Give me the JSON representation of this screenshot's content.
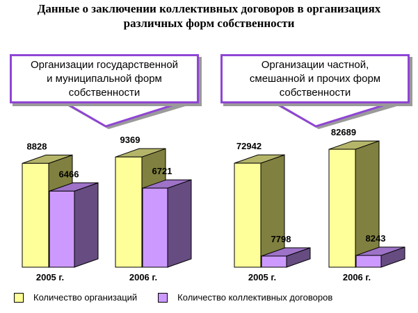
{
  "title_lines": [
    "Данные о заключении коллективных договоров в организациях",
    "различных форм собственности"
  ],
  "callouts": [
    {
      "lines": [
        "Организации государственной",
        "и муниципальной форм",
        "собственности"
      ]
    },
    {
      "lines": [
        "Организации частной,",
        "смешанной и прочих форм",
        "собственности"
      ]
    }
  ],
  "colors": {
    "organizations_front": "#ffff99",
    "organizations_side": "#808040",
    "organizations_top": "#b5b56a",
    "agreements_front": "#cc99ff",
    "agreements_side": "#664c80",
    "agreements_top": "#9d72c7",
    "callout_border": "#8f45d4"
  },
  "chart_data": {
    "type": "bar",
    "style": "3d-grouped",
    "groups": [
      {
        "panel": "Организации государственной и муниципальной форм собственности",
        "category": "2005 г.",
        "values": [
          8828,
          6466
        ]
      },
      {
        "panel": "Организации государственной и муниципальной форм собственности",
        "category": "2006 г.",
        "values": [
          9369,
          6721
        ]
      },
      {
        "panel": "Организации частной, смешанной и прочих форм собственности",
        "category": "2005 г.",
        "values": [
          72942,
          7798
        ]
      },
      {
        "panel": "Организации частной, смешанной и прочих форм собственности",
        "category": "2006 г.",
        "values": [
          82689,
          8243
        ]
      }
    ],
    "series": [
      {
        "name": "Количество организаций",
        "values": [
          8828,
          9369,
          72942,
          82689
        ]
      },
      {
        "name": "Количество коллективных договоров",
        "values": [
          6466,
          6721,
          7798,
          8243
        ]
      }
    ],
    "panels": [
      {
        "label": "Организации государственной и муниципальной форм собственности",
        "ymax": 10500
      },
      {
        "label": "Организации частной, смешанной и прочих форм собственности",
        "ymax": 91000
      }
    ],
    "legend_position": "bottom",
    "grid": false
  }
}
